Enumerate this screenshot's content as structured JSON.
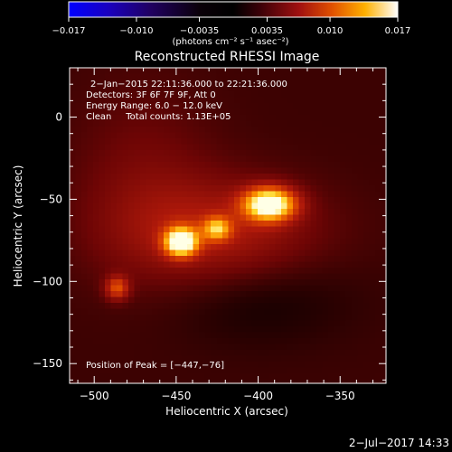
{
  "chart_data": {
    "type": "heatmap",
    "title": "Reconstructed RHESSI Image",
    "xlabel": "Heliocentric X (arcsec)",
    "ylabel": "Heliocentric Y (arcsec)",
    "xlim": [
      -515,
      -322
    ],
    "ylim": [
      -162,
      30
    ],
    "x_ticks": [
      -500,
      -450,
      -400,
      -350
    ],
    "x_tick_labels": [
      "−500",
      "−450",
      "−400",
      "−350"
    ],
    "y_ticks": [
      0,
      -50,
      -100,
      -150
    ],
    "y_tick_labels": [
      "0",
      "−50",
      "−100",
      "−150"
    ],
    "colorbar": {
      "range": [
        -0.017,
        0.017
      ],
      "ticks": [
        -0.017,
        -0.01,
        -0.0035,
        0.0035,
        0.01,
        0.017
      ],
      "tick_labels": [
        "−0.017",
        "−0.010",
        "−0.0035",
        "0.0035",
        "0.010",
        "0.017"
      ],
      "unit_text": "(photons cm⁻² s⁻¹ asec⁻²)"
    },
    "annotations": [
      "2−Jan−2015 22:11:36.000 to 22:21:36.000",
      "Detectors: 3F 6F 7F 9F, Att 0",
      "Energy Range: 6.0 − 12.0 keV",
      "Clean     Total counts: 1.13E+05"
    ],
    "peak_label": "Position of Peak = [−447,−76]",
    "sources": [
      {
        "x": -393,
        "y": -53,
        "sx": 11,
        "sy": 7,
        "amp": 1.0
      },
      {
        "x": -447,
        "y": -76,
        "sx": 7,
        "sy": 6,
        "amp": 0.97
      },
      {
        "x": -425,
        "y": -68,
        "sx": 6,
        "sy": 5,
        "amp": 0.55
      },
      {
        "x": -486,
        "y": -104,
        "sx": 5,
        "sy": 5,
        "amp": 0.45
      },
      {
        "x": -425,
        "y": -70,
        "sx": 42,
        "sy": 22,
        "amp": 0.28
      },
      {
        "x": -470,
        "y": -40,
        "sx": 30,
        "sy": 40,
        "amp": 0.12
      }
    ]
  },
  "footer": {
    "date": "2−Jul−2017 14:33"
  }
}
